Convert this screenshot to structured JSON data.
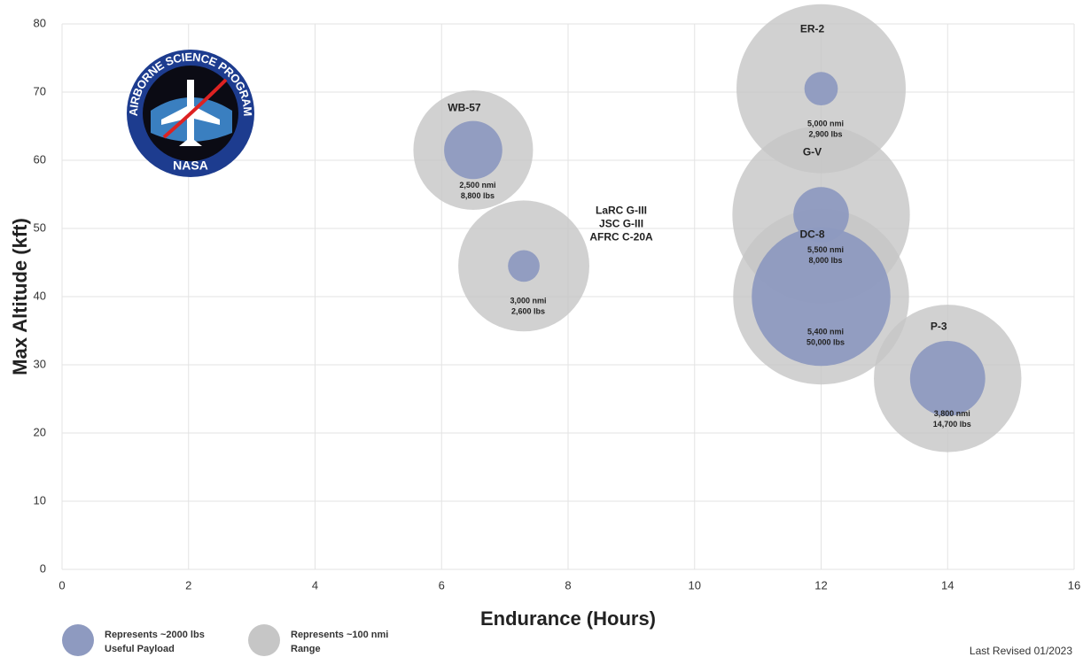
{
  "chart_data": {
    "type": "bubble",
    "xlabel": "Endurance (Hours)",
    "ylabel": "Max Altitude (kft)",
    "xlim": [
      0,
      16
    ],
    "xticks": [
      0,
      2,
      4,
      6,
      8,
      10,
      12,
      14,
      16
    ],
    "ylim": [
      0,
      80
    ],
    "yticks": [
      0,
      10,
      20,
      30,
      40,
      50,
      60,
      70,
      80
    ],
    "grid": true,
    "labels": [
      [
        "ER-2"
      ],
      [
        "WB-57"
      ],
      [
        "LaRC G-III",
        "JSC G-III",
        "AFRC C-20A"
      ],
      [
        "G-V"
      ],
      [
        "DC-8"
      ],
      [
        "P-3"
      ]
    ],
    "x": [
      12,
      6.5,
      7.3,
      12,
      12,
      14
    ],
    "y": [
      70.5,
      61.5,
      44.5,
      52,
      40,
      28
    ],
    "series": [
      {
        "name": [
          "Represents ~2000 lbs",
          "Useful Payload"
        ],
        "color": "#8e9ac0",
        "values": [
          2900,
          8800,
          2600,
          8000,
          50000,
          14700
        ],
        "value_labels": [
          "2,900 lbs",
          "8,800 lbs",
          "2,600 lbs",
          "8,000 lbs",
          "50,000 lbs",
          "14,700 lbs"
        ]
      },
      {
        "name": [
          "Represents ~100 nmi",
          "Range"
        ],
        "color": "#c6c6c6",
        "values": [
          5000,
          2500,
          3000,
          5500,
          5400,
          3800
        ],
        "value_labels": [
          "5,000 nmi",
          "2,500 nmi",
          "3,000 nmi",
          "5,500 nmi",
          "5,400 nmi",
          "3,800 nmi"
        ]
      }
    ],
    "footnote": "Last Revised 01/2023",
    "logo": {
      "ring_text": "AIRBORNE SCIENCE PROGRAM",
      "text": "NASA"
    }
  }
}
